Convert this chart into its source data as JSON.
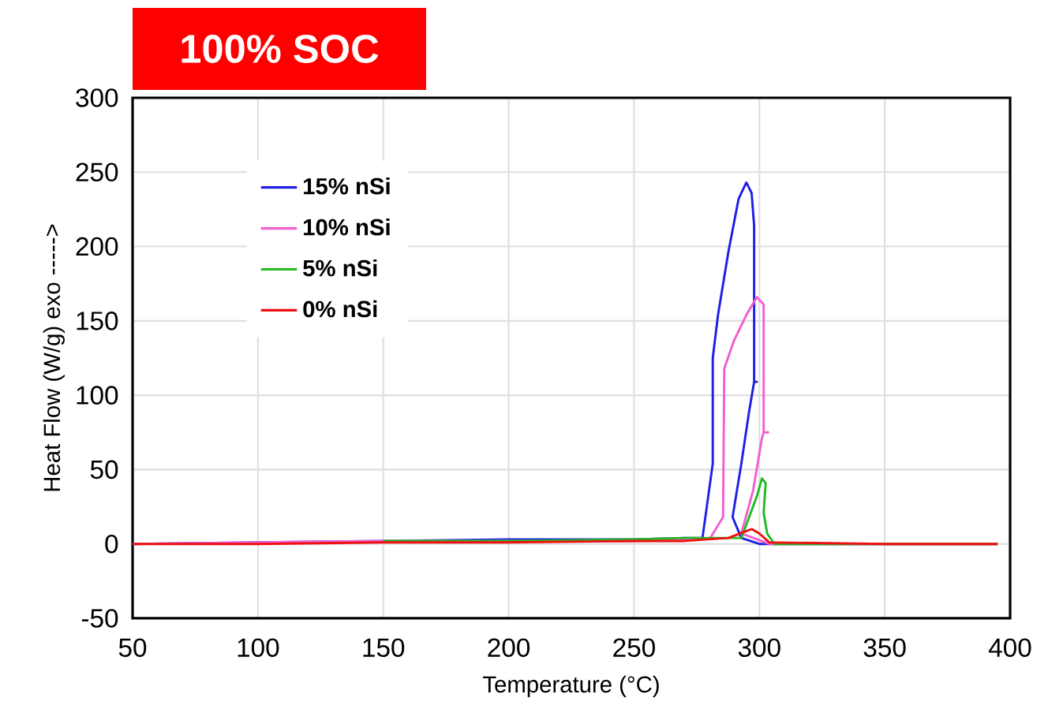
{
  "chart_data": {
    "type": "line",
    "title": "100% SOC",
    "xlabel": "Temperature (°C)",
    "ylabel": "Heat Flow (W/g)   exo ----->",
    "xlim": [
      50,
      400
    ],
    "ylim": [
      -50,
      300
    ],
    "xticks": [
      50,
      100,
      150,
      200,
      250,
      300,
      350,
      400
    ],
    "yticks": [
      -50,
      0,
      50,
      100,
      150,
      200,
      250,
      300
    ],
    "grid": true,
    "legend": "top left",
    "marker": "none",
    "line_style": "solid",
    "series": [
      {
        "name": "15% nSi",
        "color": "#1f1fe6",
        "x": [
          50,
          100,
          150,
          200,
          250,
          270,
          277.3,
          281.4,
          281.4,
          283.5,
          287.6,
          291.7,
          294.8,
          296.9,
          297.9,
          297.9,
          299,
          297.9,
          295.9,
          292.8,
          289.3,
          292.8,
          300,
          350,
          395
        ],
        "values": [
          0,
          1,
          2,
          3,
          3,
          4,
          4,
          54,
          125,
          154,
          196,
          232,
          243,
          236,
          214,
          109,
          109,
          109,
          89,
          54,
          18,
          4,
          0,
          0,
          0
        ]
      },
      {
        "name": "10% nSi",
        "color": "#f25fd0",
        "x": [
          50,
          100,
          150,
          200,
          250,
          270,
          280.4,
          285.5,
          286,
          289.7,
          294.8,
          299,
          301.7,
          301.7,
          303.5,
          301.7,
          301,
          297.5,
          292.8,
          304,
          350,
          395
        ],
        "values": [
          0,
          1,
          2,
          2,
          2,
          3,
          4,
          18,
          118,
          136,
          154,
          166,
          161,
          75,
          75,
          75,
          71,
          36,
          7,
          0,
          0,
          0
        ]
      },
      {
        "name": "5% nSi",
        "color": "#22bb22",
        "x": [
          150,
          200,
          250,
          270,
          292.8,
          295.9,
          299,
          301,
          302.5,
          301.7,
          303.1,
          306,
          350,
          395
        ],
        "values": [
          2,
          2,
          3,
          4,
          4,
          18,
          32,
          44,
          41,
          21,
          7,
          0,
          0,
          0
        ]
      },
      {
        "name": "0% nSi",
        "color": "#ee1111",
        "x": [
          50,
          100,
          150,
          200,
          250,
          270,
          287.6,
          296.9,
          300,
          304,
          350,
          395
        ],
        "values": [
          0,
          0,
          1,
          1,
          2,
          2,
          4,
          10,
          7,
          1,
          0,
          0
        ]
      }
    ]
  }
}
